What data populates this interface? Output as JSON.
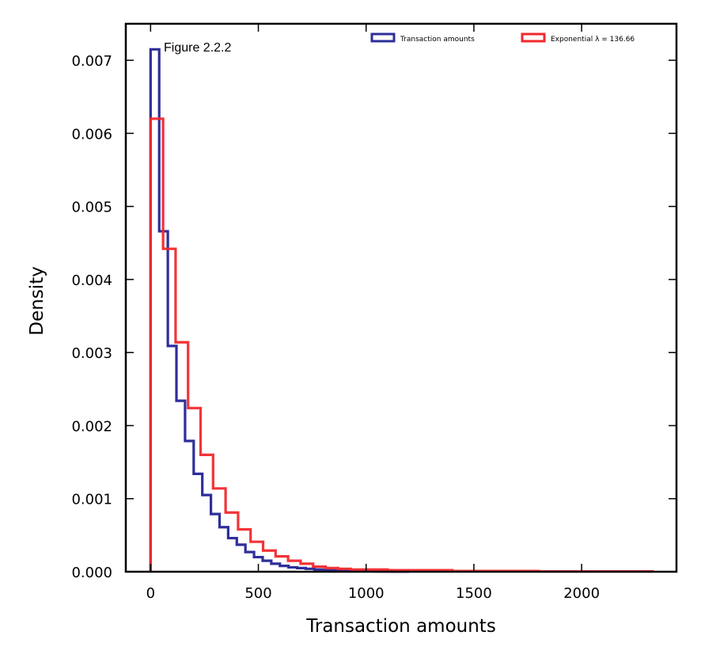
{
  "chart_data": {
    "type": "histogram",
    "title": "",
    "annotation": "Figure 2.2.2",
    "xlabel": "Transaction amounts",
    "ylabel": "Density",
    "xlim": [
      -115,
      2440
    ],
    "ylim": [
      0,
      0.0075
    ],
    "xticks": [
      0,
      500,
      1000,
      1500,
      2000
    ],
    "yticks": [
      0.0,
      0.001,
      0.002,
      0.003,
      0.004,
      0.005,
      0.006,
      0.007
    ],
    "ytick_labels": [
      "0.000",
      "0.001",
      "0.002",
      "0.003",
      "0.004",
      "0.005",
      "0.006",
      "0.007"
    ],
    "grid": false,
    "legend_position": "top-right",
    "series": [
      {
        "name": "Transaction amounts",
        "color": "#2e2e9a",
        "bin_edges": [
          0,
          40,
          80,
          120,
          160,
          200,
          240,
          280,
          320,
          360,
          400,
          440,
          480,
          520,
          560,
          600,
          640,
          680,
          720,
          760,
          800,
          840,
          880,
          920,
          960,
          1000,
          1040,
          1080,
          1120,
          1160,
          1200
        ],
        "values": [
          0.00715,
          0.00466,
          0.00309,
          0.00234,
          0.00179,
          0.00134,
          0.00105,
          0.00079,
          0.00061,
          0.00046,
          0.00037,
          0.00027,
          0.0002,
          0.00015,
          0.00011,
          8e-05,
          6e-05,
          5e-05,
          4e-05,
          3e-05,
          2e-05,
          1.5e-05,
          1e-05,
          1e-05,
          8e-06,
          6e-06,
          5e-06,
          4e-06,
          3e-06,
          2e-06
        ]
      },
      {
        "name": "Exponential λ = 136.66",
        "color": "#f2282c",
        "bin_edges": [
          0,
          58,
          116,
          174,
          232,
          290,
          348,
          406,
          464,
          522,
          580,
          638,
          696,
          754,
          812,
          870,
          928,
          1100,
          1400,
          1800,
          2330
        ],
        "values": [
          0.0062,
          0.00442,
          0.00314,
          0.00224,
          0.0016,
          0.00114,
          0.00081,
          0.00058,
          0.00041,
          0.00029,
          0.00021,
          0.00015,
          0.00011,
          7e-05,
          5e-05,
          4e-05,
          3e-05,
          2e-05,
          1e-05,
          5e-06
        ]
      }
    ]
  }
}
